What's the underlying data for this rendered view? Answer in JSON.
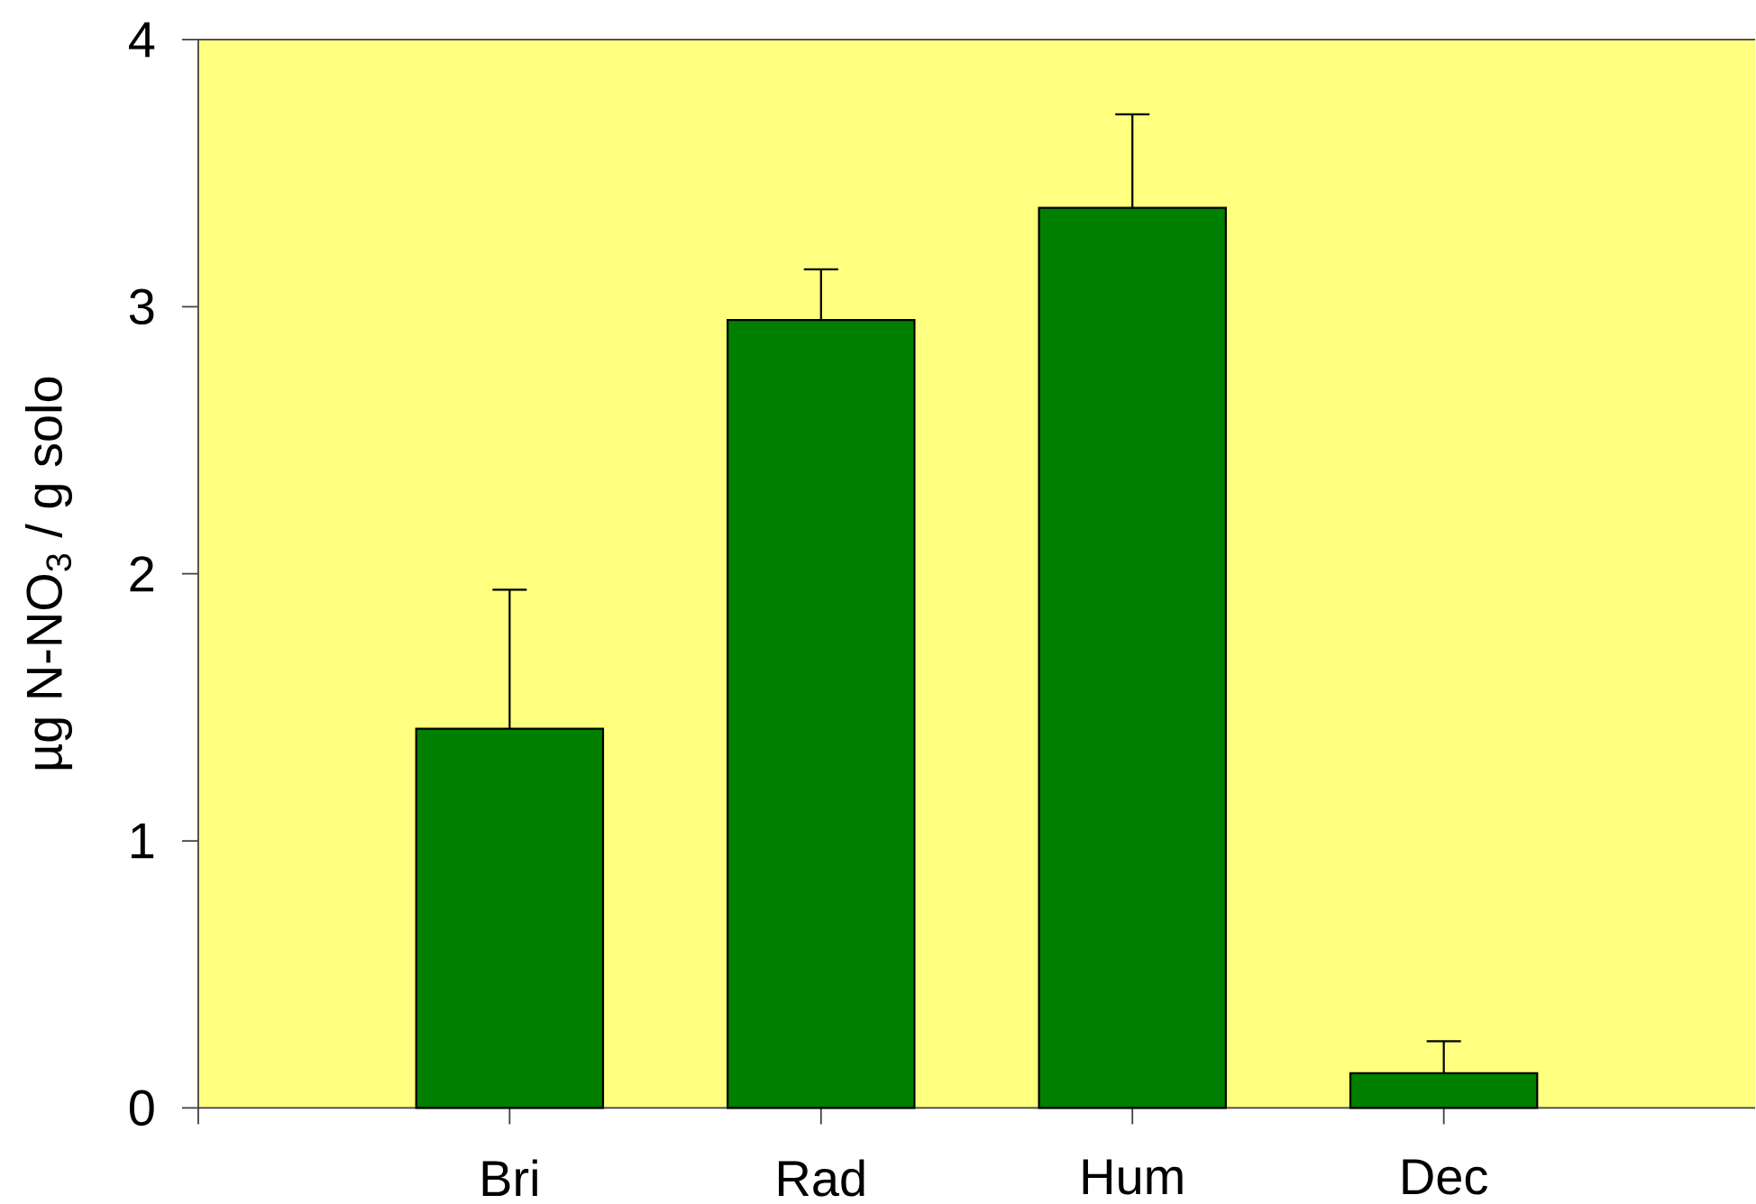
{
  "chart_data": {
    "type": "bar",
    "ylabel": "µg N-NO$_{3}$ / g solo",
    "categories": [
      "Bri",
      "Rad",
      "Hum",
      "Dec"
    ],
    "values": [
      1.42,
      2.95,
      3.37,
      0.13
    ],
    "errors": [
      [
        1.42,
        1.94
      ],
      [
        2.95,
        3.14
      ],
      [
        3.37,
        3.72
      ],
      [
        0.13,
        0.25
      ]
    ],
    "color": "#008000",
    "ylim": [
      0,
      4
    ],
    "yticks": [
      0,
      1,
      2,
      3,
      4
    ]
  }
}
